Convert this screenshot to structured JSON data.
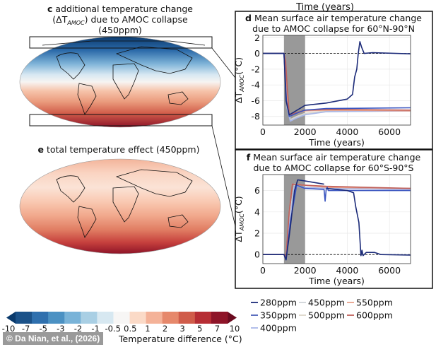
{
  "panel_c": {
    "letter": "c",
    "title_line1": "additional temperature change",
    "title_line2_open": "(ΔT",
    "title_line2_sub": "AMOC",
    "title_line2_rest": ") due to AMOC collapse",
    "title_line3": "(450ppm)"
  },
  "panel_e": {
    "letter": "e",
    "title": "total temperature effect (450ppm)"
  },
  "top_cut_label": "Time (years)",
  "colorbar": {
    "ticks": [
      "-10",
      "-7",
      "-5",
      "-3",
      "-2",
      "-1",
      "-0.5",
      "0.5",
      "1",
      "2",
      "3",
      "5",
      "7",
      "10"
    ],
    "colors": [
      "#1b5289",
      "#2f70ae",
      "#4b91c3",
      "#79b3d8",
      "#a9cfe4",
      "#d7e8f1",
      "#f7f6f5",
      "#fbdac7",
      "#f4b298",
      "#e6886b",
      "#d05c4a",
      "#b62d34",
      "#8e1428"
    ],
    "extend_low": "#0a3a6c",
    "extend_high": "#6a0a1f",
    "label": "Temperature difference (°C)"
  },
  "legend": [
    {
      "name": "280ppm",
      "color": "#1b2a78"
    },
    {
      "name": "450ppm",
      "color": "#cfd3d8"
    },
    {
      "name": "550ppm",
      "color": "#e8a08a"
    },
    {
      "name": "350ppm",
      "color": "#4a5fb8"
    },
    {
      "name": "500ppm",
      "color": "#dcd6c8"
    },
    {
      "name": "600ppm",
      "color": "#c0605a"
    },
    {
      "name": "400ppm",
      "color": "#a9b7e8"
    }
  ],
  "watermark": "© Da Nian, et al., (2026)",
  "chart_data": [
    {
      "type": "line",
      "letter": "d",
      "title_line1": "Mean surface air temperature change",
      "title_line2": "due to AMOC collapse for 60°N-90°N",
      "xlabel": "Time (years)",
      "ylabel_main": "ΔT",
      "ylabel_sub": "AMOC",
      "ylabel_unit": "(°C)",
      "xlim": [
        0,
        7000
      ],
      "ylim": [
        -9.1,
        2.3
      ],
      "xticks": [
        0,
        2000,
        4000,
        6000
      ],
      "yticks": [
        -8,
        -6,
        -4,
        -2,
        0,
        2
      ],
      "shaded_span": [
        1000,
        2000
      ],
      "zero_line": true,
      "grid": true,
      "series": [
        {
          "name": "500ppm",
          "color": "#dcd6c8",
          "points": [
            [
              0,
              0
            ],
            [
              1000,
              0
            ],
            [
              1150,
              -6
            ],
            [
              1300,
              -8.4
            ],
            [
              1600,
              -8.0
            ],
            [
              2000,
              -7.6
            ],
            [
              3000,
              -7.3
            ],
            [
              7000,
              -7.2
            ]
          ]
        },
        {
          "name": "450ppm",
          "color": "#cfd3d8",
          "points": [
            [
              0,
              0
            ],
            [
              1000,
              0
            ],
            [
              1150,
              -6.5
            ],
            [
              1300,
              -8.5
            ],
            [
              1600,
              -8.1
            ],
            [
              2000,
              -7.7
            ],
            [
              3000,
              -7.4
            ],
            [
              7000,
              -7.3
            ]
          ]
        },
        {
          "name": "400ppm",
          "color": "#a9b7e8",
          "points": [
            [
              0,
              0
            ],
            [
              1000,
              0
            ],
            [
              1150,
              -7
            ],
            [
              1300,
              -8.6
            ],
            [
              1600,
              -8.2
            ],
            [
              2000,
              -7.8
            ],
            [
              3000,
              -7.4
            ],
            [
              7000,
              -7.3
            ]
          ]
        },
        {
          "name": "550ppm",
          "color": "#e8a08a",
          "points": [
            [
              0,
              0
            ],
            [
              1000,
              0
            ],
            [
              1150,
              -6
            ],
            [
              1250,
              -7.9
            ],
            [
              1600,
              -7.6
            ],
            [
              2000,
              -7.3
            ],
            [
              3000,
              -7.2
            ],
            [
              7000,
              -7.3
            ]
          ]
        },
        {
          "name": "600ppm",
          "color": "#c0605a",
          "points": [
            [
              0,
              0
            ],
            [
              1000,
              0
            ],
            [
              1080,
              -1
            ],
            [
              1150,
              -4
            ],
            [
              1250,
              -7.8
            ],
            [
              1500,
              -7.6
            ],
            [
              2000,
              -7.2
            ],
            [
              3000,
              -7.1
            ],
            [
              7000,
              -7.2
            ]
          ]
        },
        {
          "name": "350ppm",
          "color": "#3a55c0",
          "points": [
            [
              0,
              0
            ],
            [
              1000,
              0
            ],
            [
              1120,
              -6
            ],
            [
              1250,
              -8.0
            ],
            [
              1600,
              -7.6
            ],
            [
              2000,
              -7.2
            ],
            [
              3000,
              -7.0
            ],
            [
              7000,
              -6.9
            ]
          ]
        },
        {
          "name": "280ppm",
          "color": "#1b2a78",
          "points": [
            [
              0,
              0
            ],
            [
              1000,
              0
            ],
            [
              1100,
              -6
            ],
            [
              1250,
              -7.8
            ],
            [
              1500,
              -7.4
            ],
            [
              2000,
              -6.6
            ],
            [
              3000,
              -6.3
            ],
            [
              4000,
              -5.8
            ],
            [
              4250,
              -5.2
            ],
            [
              4350,
              -3
            ],
            [
              4450,
              -2
            ],
            [
              4520,
              0
            ],
            [
              4600,
              1.5
            ],
            [
              4680,
              0.8
            ],
            [
              4800,
              0
            ],
            [
              5200,
              0.1
            ],
            [
              7000,
              -0.05
            ]
          ]
        }
      ]
    },
    {
      "type": "line",
      "letter": "f",
      "title_line1": "Mean surface air temperature change",
      "title_line2": "due to AMOC collapse for 60°S-90°S",
      "xlabel": "Time (years)",
      "ylabel_main": "ΔT",
      "ylabel_sub": "AMOC",
      "ylabel_unit": "(°C)",
      "xlim": [
        0,
        7000
      ],
      "ylim": [
        -0.85,
        7.5
      ],
      "xticks": [
        0,
        2000,
        4000,
        6000
      ],
      "yticks": [
        0,
        2,
        4,
        6
      ],
      "shaded_span": [
        1000,
        2000
      ],
      "zero_line": true,
      "grid": true,
      "series": [
        {
          "name": "500ppm",
          "color": "#dcd6c8",
          "points": [
            [
              0,
              0
            ],
            [
              1000,
              0
            ],
            [
              1100,
              -0.3
            ],
            [
              1300,
              4
            ],
            [
              1500,
              6.6
            ],
            [
              2000,
              6.5
            ],
            [
              3000,
              6.3
            ],
            [
              7000,
              6.2
            ]
          ]
        },
        {
          "name": "450ppm",
          "color": "#cfd3d8",
          "points": [
            [
              0,
              0
            ],
            [
              1000,
              0
            ],
            [
              1100,
              -0.3
            ],
            [
              1300,
              4
            ],
            [
              1500,
              6.6
            ],
            [
              2000,
              6.5
            ],
            [
              3000,
              6.3
            ],
            [
              7000,
              6.2
            ]
          ]
        },
        {
          "name": "400ppm",
          "color": "#a9b7e8",
          "points": [
            [
              0,
              0
            ],
            [
              1000,
              0
            ],
            [
              1100,
              -0.4
            ],
            [
              1300,
              3.5
            ],
            [
              1500,
              6.4
            ],
            [
              2000,
              6.3
            ],
            [
              3000,
              6.2
            ],
            [
              7000,
              6.1
            ]
          ]
        },
        {
          "name": "550ppm",
          "color": "#e8a08a",
          "points": [
            [
              0,
              0
            ],
            [
              1000,
              0
            ],
            [
              1100,
              -0.2
            ],
            [
              1250,
              4
            ],
            [
              1400,
              6.6
            ],
            [
              2000,
              6.5
            ],
            [
              3000,
              6.3
            ],
            [
              7000,
              6.2
            ]
          ]
        },
        {
          "name": "600ppm",
          "color": "#c0605a",
          "points": [
            [
              0,
              0
            ],
            [
              1000,
              0
            ],
            [
              1100,
              -0.2
            ],
            [
              1250,
              4
            ],
            [
              1400,
              6.6
            ],
            [
              2000,
              6.5
            ],
            [
              3000,
              6.4
            ],
            [
              7000,
              6.2
            ]
          ]
        },
        {
          "name": "350ppm",
          "color": "#3a55c0",
          "points": [
            [
              0,
              0
            ],
            [
              1000,
              0
            ],
            [
              1100,
              -0.5
            ],
            [
              1300,
              3
            ],
            [
              1600,
              6.5
            ],
            [
              2000,
              6.2
            ],
            [
              2900,
              6.1
            ],
            [
              2950,
              5.0
            ],
            [
              3000,
              6.1
            ],
            [
              3050,
              6.3
            ],
            [
              3100,
              6.0
            ],
            [
              7000,
              6.0
            ]
          ]
        },
        {
          "name": "280ppm",
          "color": "#1b2a78",
          "points": [
            [
              0,
              0
            ],
            [
              1000,
              0
            ],
            [
              1100,
              -0.5
            ],
            [
              1300,
              2.5
            ],
            [
              1500,
              6.0
            ],
            [
              1650,
              7.0
            ],
            [
              2000,
              6.9
            ],
            [
              2900,
              6.6
            ],
            [
              2900,
              null
            ],
            [
              3000,
              6.2
            ],
            [
              4000,
              6.0
            ],
            [
              4300,
              5.8
            ],
            [
              4400,
              4.5
            ],
            [
              4550,
              3
            ],
            [
              4650,
              -0.1
            ],
            [
              4700,
              0.4
            ],
            [
              4750,
              -0.1
            ],
            [
              4900,
              0.2
            ],
            [
              5300,
              0.2
            ],
            [
              5600,
              0.0
            ],
            [
              7000,
              -0.05
            ]
          ]
        }
      ]
    }
  ]
}
